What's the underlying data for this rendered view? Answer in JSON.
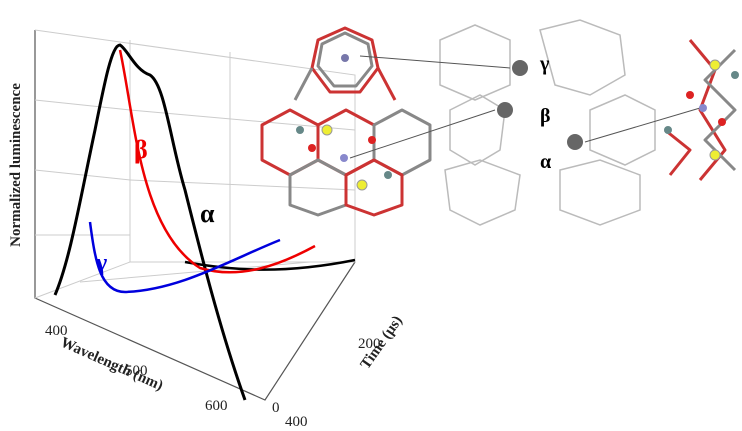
{
  "plot": {
    "y_axis_label": "Normalized luminescence",
    "x_axis_label": "Wavelength (nm)",
    "x_tick_labels": [
      "400",
      "500",
      "600"
    ],
    "z_axis_label": "Time (μs)",
    "z_tick_labels": [
      "0",
      "200",
      "400"
    ],
    "curve_labels": [
      "β",
      "γ",
      "α"
    ]
  },
  "structure": {
    "site_labels": [
      "γ",
      "β",
      "α"
    ]
  }
}
